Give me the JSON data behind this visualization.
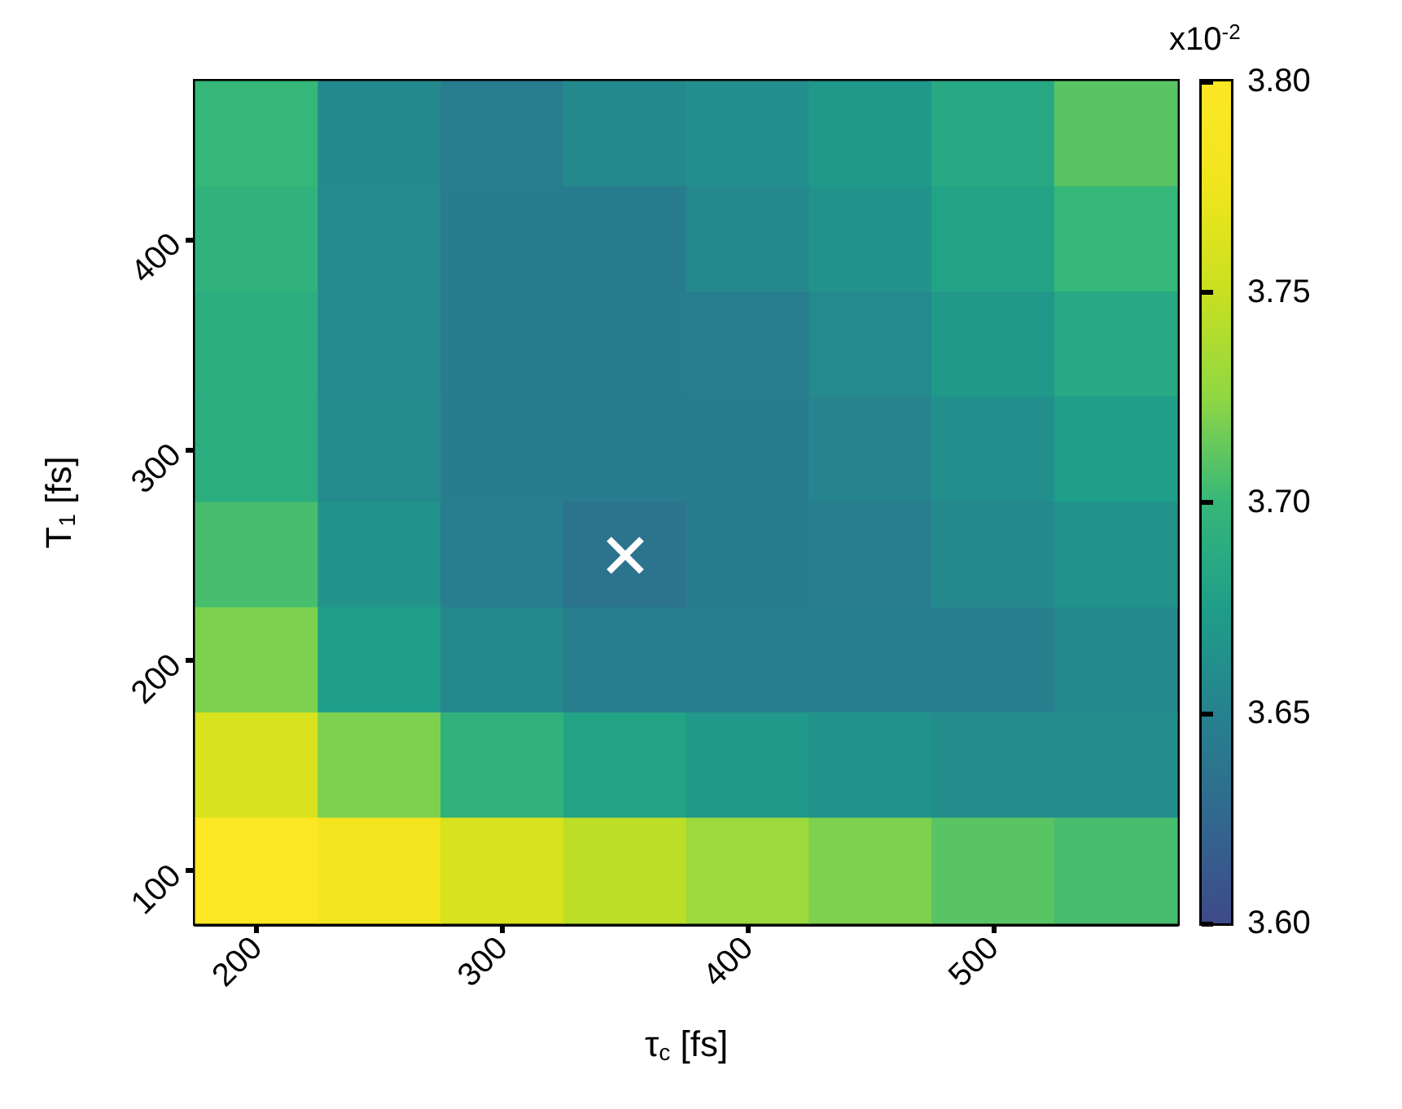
{
  "chart_data": {
    "type": "heatmap",
    "xlabel": "τ$_{c}$ [fs]",
    "ylabel": "T$_{1}$ [fs]",
    "clabel": "x10$^{-2}$",
    "categories": [
      "200",
      null,
      "300",
      null,
      "400",
      null,
      "500",
      null
    ],
    "y_categories": [
      null,
      "400",
      null,
      "300",
      null,
      "200",
      null,
      "100"
    ],
    "cells": [
      [
        3.7,
        3.656,
        3.645,
        3.656,
        3.662,
        3.67,
        3.685,
        3.71
      ],
      [
        3.695,
        3.657,
        3.644,
        3.644,
        3.655,
        3.665,
        3.68,
        3.7
      ],
      [
        3.69,
        3.657,
        3.644,
        3.644,
        3.646,
        3.657,
        3.67,
        3.685
      ],
      [
        3.69,
        3.658,
        3.644,
        3.643,
        3.644,
        3.652,
        3.662,
        3.675
      ],
      [
        3.705,
        3.665,
        3.645,
        3.636,
        3.644,
        3.646,
        3.655,
        3.665
      ],
      [
        3.72,
        3.675,
        3.655,
        3.647,
        3.647,
        3.647,
        3.647,
        3.655
      ],
      [
        3.76,
        3.72,
        3.695,
        3.68,
        3.67,
        3.665,
        3.66,
        3.66
      ],
      [
        3.8,
        3.78,
        3.76,
        3.745,
        3.73,
        3.72,
        3.71,
        3.705
      ]
    ],
    "clim": [
      3.6,
      3.8
    ],
    "cticks": [
      {
        "value": 3.6,
        "label": "3.60"
      },
      {
        "value": 3.65,
        "label": "3.65"
      },
      {
        "value": 3.7,
        "label": "3.70"
      },
      {
        "value": 3.75,
        "label": "3.75"
      },
      {
        "value": 3.8,
        "label": "3.80"
      }
    ],
    "grid": false
  }
}
